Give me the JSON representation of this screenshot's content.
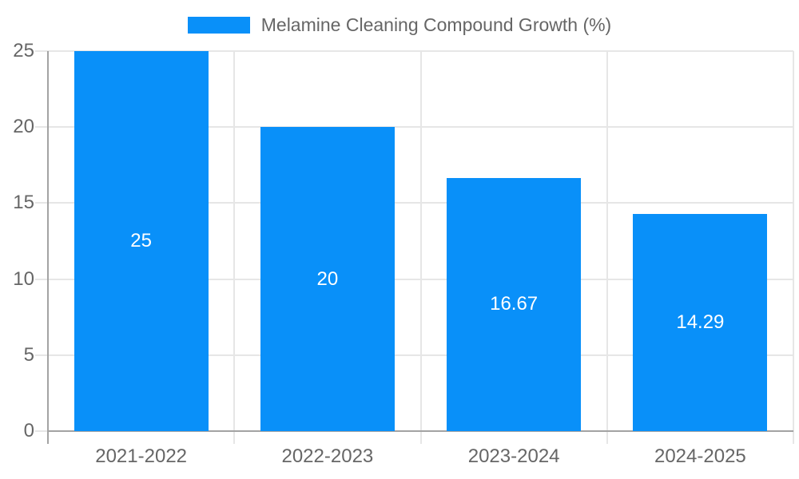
{
  "chart_data": {
    "type": "bar",
    "legend_label": "Melamine Cleaning Compound Growth (%)",
    "legend_position": "top",
    "categories": [
      "2021-2022",
      "2022-2023",
      "2023-2024",
      "2024-2025"
    ],
    "values": [
      25,
      20,
      16.67,
      14.29
    ],
    "value_labels": [
      "25",
      "20",
      "16.67",
      "14.29"
    ],
    "value_labels_position": "center",
    "ylim": [
      0,
      25
    ],
    "yticks": [
      0,
      5,
      10,
      15,
      20,
      25
    ],
    "ytick_labels": [
      "0",
      "5",
      "10",
      "15",
      "20",
      "25"
    ],
    "xlabel": "",
    "ylabel": "",
    "grid": true,
    "colors": {
      "bar": "#0990f9",
      "grid": "#e6e6e6",
      "axis": "#a3a3a3",
      "text": "#666666",
      "bar_label": "#ffffff",
      "background": "#ffffff"
    }
  }
}
